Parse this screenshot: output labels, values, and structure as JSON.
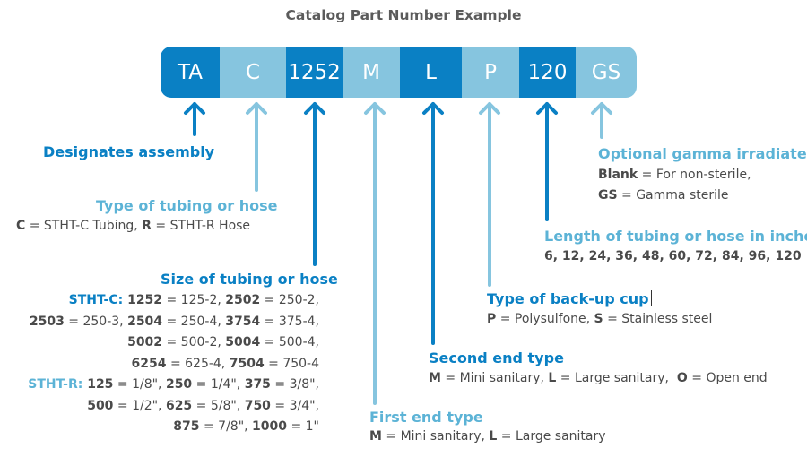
{
  "title": "Catalog Part Number Example",
  "segments": [
    "TA",
    "C",
    "1252",
    "M",
    "L",
    "P",
    "120",
    "GS"
  ],
  "colors": {
    "dark": "#0a80c4",
    "light": "#86c5df",
    "text": "#4a4a4a"
  },
  "assembly": {
    "label": "Designates assembly"
  },
  "tubing_type": {
    "label": "Type of tubing or hose",
    "c_code": "C",
    "c_text": " = STHT-C Tubing, ",
    "r_code": "R",
    "r_text": " = STHT-R Hose"
  },
  "size": {
    "label": "Size of tubing or hose",
    "stht_c_label": "STHT-C:",
    "c_lines": [
      [
        [
          "1252",
          " = 125-2, "
        ],
        [
          "2502",
          " = 250-2,"
        ]
      ],
      [
        [
          "2503",
          " = 250-3, "
        ],
        [
          "2504",
          " = 250-4, "
        ],
        [
          "3754",
          " = 375-4,"
        ]
      ],
      [
        [
          "5002",
          " = 500-2, "
        ],
        [
          "5004",
          " = 500-4,"
        ]
      ],
      [
        [
          "6254",
          " = 625-4, "
        ],
        [
          "7504",
          " = 750-4"
        ]
      ]
    ],
    "stht_r_label": "STHT-R:",
    "r_lines": [
      [
        [
          "125",
          " = 1/8\", "
        ],
        [
          "250",
          " = 1/4\", "
        ],
        [
          "375",
          " = 3/8\","
        ]
      ],
      [
        [
          "500",
          " = 1/2\", "
        ],
        [
          "625",
          " = 5/8\", "
        ],
        [
          "750",
          " = 3/4\","
        ]
      ],
      [
        [
          "875",
          " = 7/8\", "
        ],
        [
          "1000",
          " = 1\""
        ]
      ]
    ]
  },
  "first_end": {
    "label": "First end type",
    "m_code": "M",
    "m_text": " = Mini sanitary, ",
    "l_code": "L",
    "l_text": " = Large sanitary"
  },
  "second_end": {
    "label": "Second end type",
    "m_code": "M",
    "m_text": " = Mini sanitary, ",
    "l_code": "L",
    "l_text": " = Large sanitary,  ",
    "o_code": "O",
    "o_text": " = Open end"
  },
  "backup_cup": {
    "label": "Type of back-up cup",
    "p_code": "P",
    "p_text": " = Polysulfone, ",
    "s_code": "S",
    "s_text": " = Stainless steel"
  },
  "length": {
    "label": "Length of tubing or hose in inches",
    "values": "6, 12, 24, 36, 48, 60, 72, 84, 96, 120"
  },
  "gamma": {
    "label": "Optional gamma irradiated",
    "blank_code": "Blank",
    "blank_text": " = For non-sterile,",
    "gs_code": "GS",
    "gs_text": " = Gamma sterile"
  }
}
